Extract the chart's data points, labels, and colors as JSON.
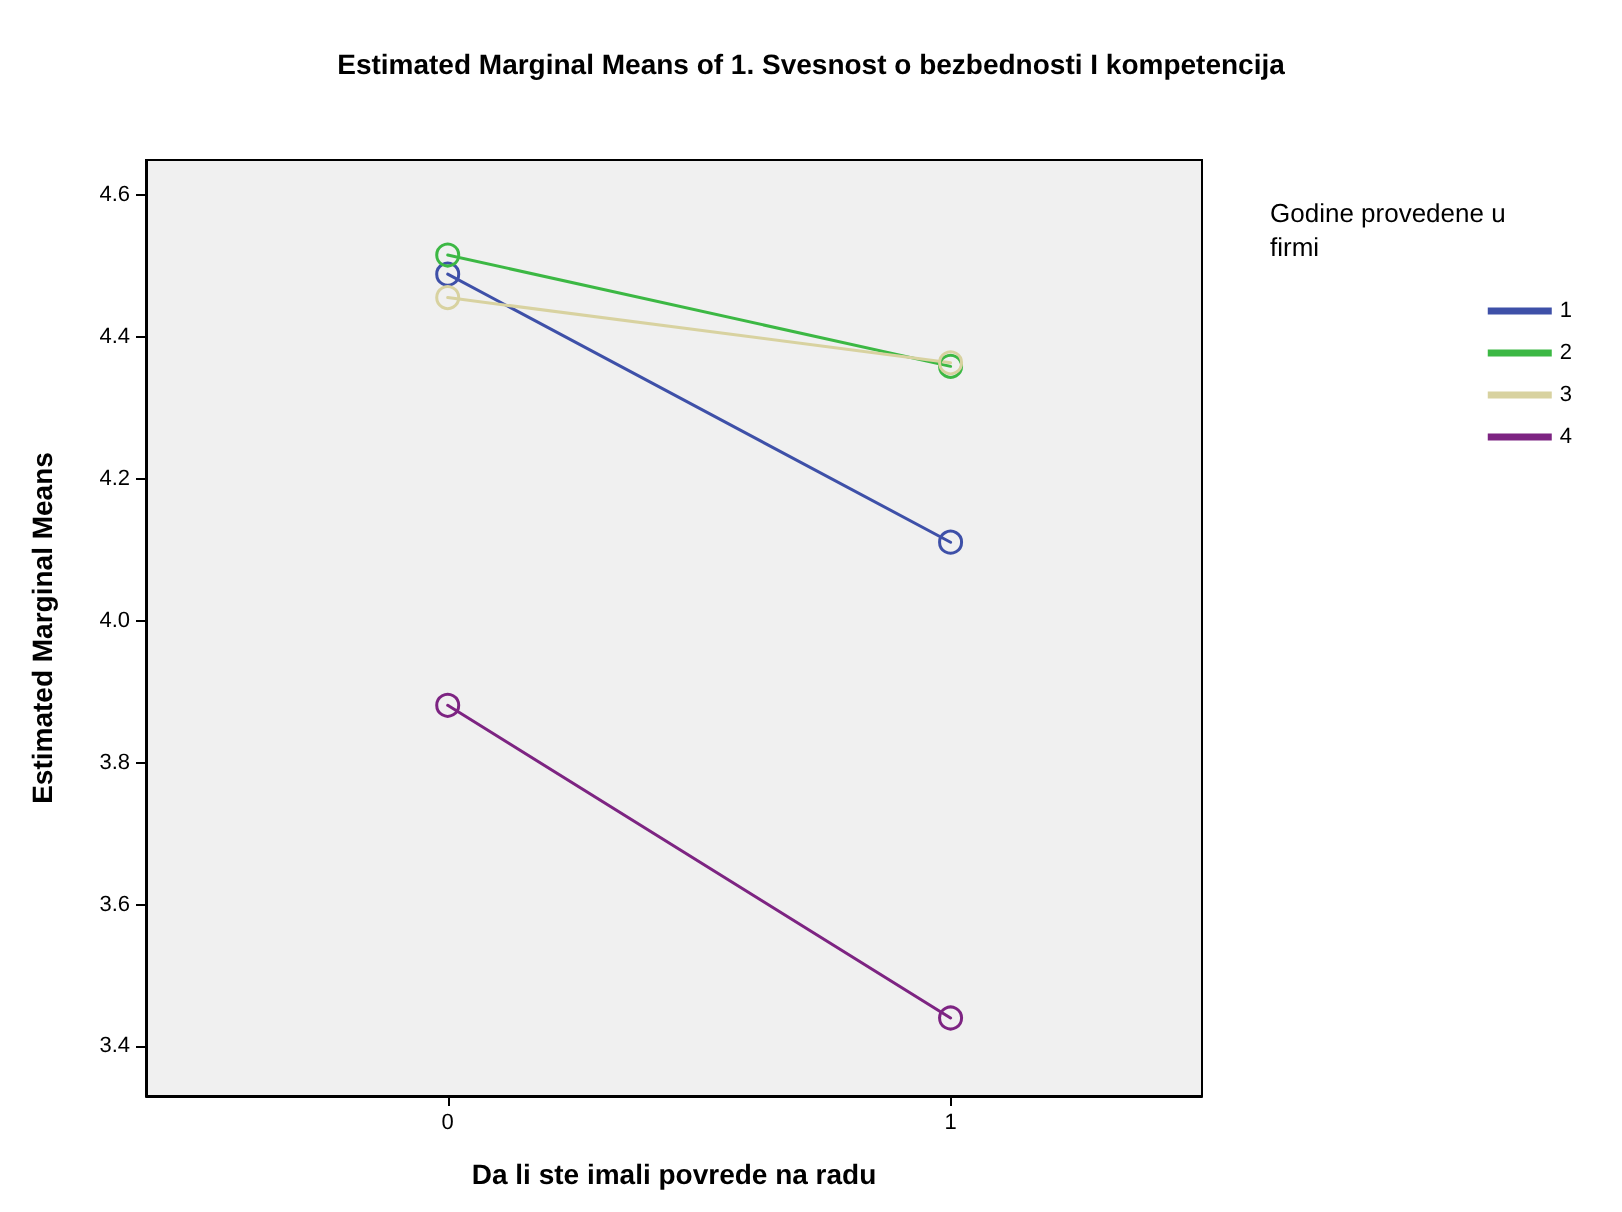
{
  "chart_data": {
    "type": "line",
    "title": "Estimated Marginal Means of 1. Svesnost o bezbednosti I kompetencija",
    "xlabel": "Da li ste imali povrede na radu",
    "ylabel": "Estimated Marginal Means",
    "legend_title": "Godine provedene u firmi",
    "x": [
      0,
      1
    ],
    "series": [
      {
        "name": "1",
        "color": "#3e50a8",
        "values": [
          4.489,
          4.111
        ]
      },
      {
        "name": "2",
        "color": "#3cb844",
        "values": [
          4.516,
          4.359
        ]
      },
      {
        "name": "3",
        "color": "#d8d2a0",
        "values": [
          4.456,
          4.364
        ]
      },
      {
        "name": "4",
        "color": "#7d2482",
        "values": [
          3.881,
          3.44
        ]
      }
    ],
    "xlim": [
      -0.6,
      1.5
    ],
    "xticks": [
      0,
      1
    ],
    "ylim": [
      3.33,
      4.65
    ],
    "yticks": [
      3.4,
      3.6,
      3.8,
      {
        "value": 4,
        "label": "4.0"
      },
      4.2,
      4.4,
      4.6
    ],
    "grid": false,
    "legend": "right",
    "marker": "circle",
    "line_style": "solid"
  }
}
